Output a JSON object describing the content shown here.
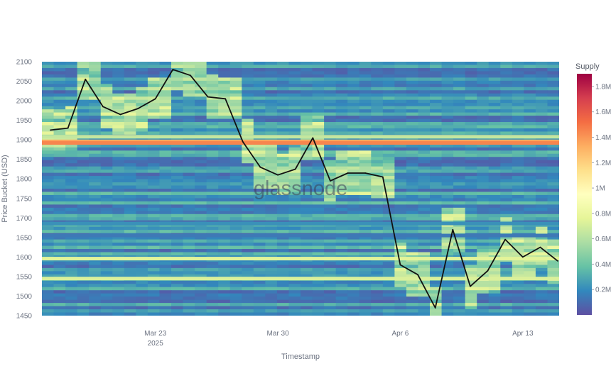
{
  "watermark": "glassnode",
  "chart_data": {
    "type": "heatmap",
    "xlabel": "Timestamp",
    "ylabel": "Price Bucket (USD)",
    "x_tick_labels": [
      {
        "date": "2025-03-23",
        "label": "Mar 23",
        "sublabel": "2025"
      },
      {
        "date": "2025-03-30",
        "label": "Mar 30"
      },
      {
        "date": "2025-04-06",
        "label": "Apr 6"
      },
      {
        "date": "2025-04-13",
        "label": "Apr 13"
      }
    ],
    "xlim": [
      "2025-03-17",
      "2025-04-15"
    ],
    "ylim": [
      1450,
      2100
    ],
    "y_ticks": [
      1450,
      1500,
      1550,
      1600,
      1650,
      1700,
      1750,
      1800,
      1850,
      1900,
      1950,
      2000,
      2050,
      2100
    ],
    "colorbar": {
      "title": "Supply",
      "ticks": [
        {
          "value": 200000,
          "label": "0.2M"
        },
        {
          "value": 400000,
          "label": "0.4M"
        },
        {
          "value": 600000,
          "label": "0.6M"
        },
        {
          "value": 800000,
          "label": "0.8M"
        },
        {
          "value": 1000000,
          "label": "1M"
        },
        {
          "value": 1200000,
          "label": "1.2M"
        },
        {
          "value": 1400000,
          "label": "1.4M"
        },
        {
          "value": 1600000,
          "label": "1.6M"
        },
        {
          "value": 1800000,
          "label": "1.8M"
        }
      ],
      "range": [
        0,
        1900000
      ],
      "colormap": [
        "#5e4fa2",
        "#3288bd",
        "#66c2a5",
        "#abdda4",
        "#e6f598",
        "#ffffbf",
        "#fee08b",
        "#fdae61",
        "#f46d43",
        "#d53e4f",
        "#9e0142"
      ]
    },
    "heat_bands": [
      {
        "price": 1896,
        "supply": 1350000
      },
      {
        "price": 1892,
        "supply": 1450000
      },
      {
        "price": 1908,
        "supply": 650000
      },
      {
        "price": 1596,
        "supply": 750000
      },
      {
        "price": 1545,
        "supply": 720000
      },
      {
        "price": 1686,
        "supply": 220000
      },
      {
        "price": 1655,
        "supply": 140000
      }
    ],
    "series": [
      {
        "x": [
          "2025-03-17",
          "2025-03-18",
          "2025-03-19",
          "2025-03-20",
          "2025-03-21",
          "2025-03-22",
          "2025-03-23",
          "2025-03-24",
          "2025-03-25",
          "2025-03-26",
          "2025-03-27",
          "2025-03-28",
          "2025-03-29",
          "2025-03-30",
          "2025-03-31",
          "2025-04-01",
          "2025-04-02",
          "2025-04-03",
          "2025-04-04",
          "2025-04-05",
          "2025-04-06",
          "2025-04-07",
          "2025-04-08",
          "2025-04-09",
          "2025-04-10",
          "2025-04-11",
          "2025-04-12",
          "2025-04-13",
          "2025-04-14",
          "2025-04-15"
        ],
        "y": [
          1925,
          1930,
          2055,
          1985,
          1965,
          1980,
          2005,
          2080,
          2065,
          2010,
          2005,
          1895,
          1830,
          1810,
          1825,
          1905,
          1795,
          1815,
          1815,
          1805,
          1580,
          1555,
          1470,
          1670,
          1525,
          1565,
          1645,
          1600,
          1625,
          1590
        ],
        "color": "#111111"
      }
    ]
  }
}
